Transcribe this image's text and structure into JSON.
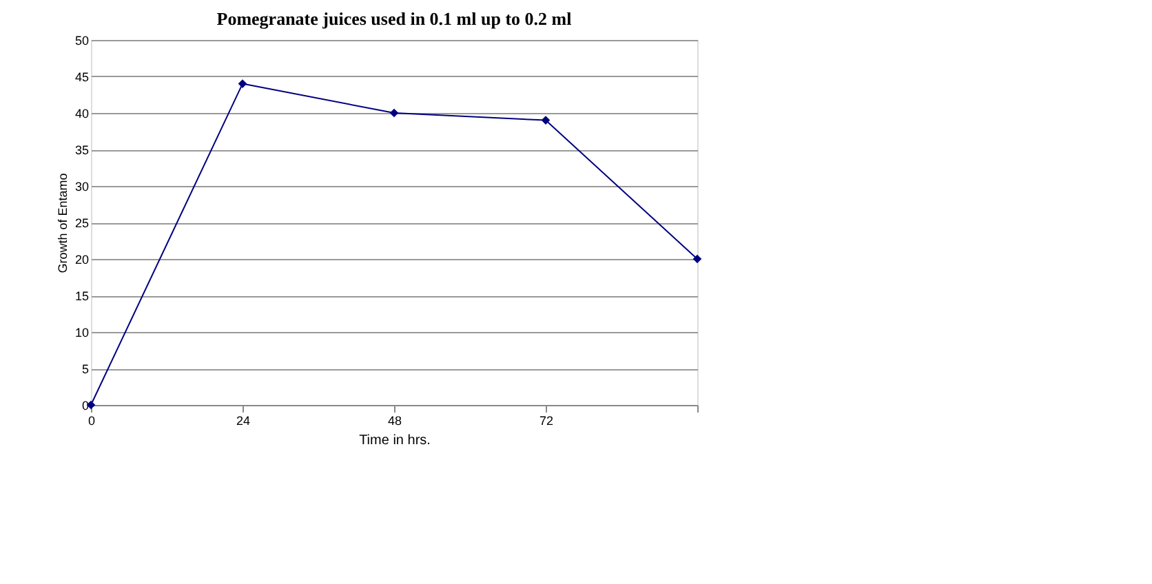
{
  "chart_data": {
    "type": "line",
    "title": "Pomegranate juices used in 0.1 ml up to 0.2 ml",
    "xlabel": "Time in hrs.",
    "ylabel": "Growth of Entamo",
    "categories": [
      "0",
      "24",
      "48",
      "72",
      null
    ],
    "series": [
      {
        "color": "#000080",
        "values": [
          0,
          44,
          40,
          39,
          20
        ]
      }
    ],
    "ylim": [
      0,
      50
    ],
    "yticks": [
      0,
      5,
      10,
      15,
      20,
      25,
      30,
      35,
      40,
      45,
      50
    ],
    "grid": "y",
    "marker": "diamond",
    "line_style": "solid"
  }
}
